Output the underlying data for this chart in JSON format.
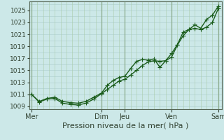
{
  "xlabel": "Pression niveau de la mer( hPa )",
  "bg_color": "#cce8e8",
  "line_color": "#1a5c1a",
  "grid_color_major_v": "#8aaa8a",
  "grid_color_minor": "#aaccaa",
  "grid_color_h": "#aacccc",
  "ylim": [
    1008.5,
    1026.5
  ],
  "yticks": [
    1009,
    1011,
    1013,
    1015,
    1017,
    1019,
    1021,
    1023,
    1025
  ],
  "x_day_labels": [
    "Mer",
    "Dim",
    "Jeu",
    "Ven",
    "Sam"
  ],
  "x_day_positions": [
    0.0,
    3.0,
    4.0,
    6.0,
    8.0
  ],
  "xlim": [
    -0.1,
    8.15
  ],
  "line1_x": [
    0.0,
    0.33,
    0.67,
    1.0,
    1.33,
    1.67,
    2.0,
    2.33,
    2.67,
    3.0,
    3.25,
    3.5,
    3.75,
    4.0,
    4.25,
    4.5,
    4.75,
    5.0,
    5.25,
    5.5,
    5.75,
    6.0,
    6.25,
    6.5,
    6.75,
    7.0,
    7.25,
    7.5,
    7.75,
    8.0
  ],
  "line1_y": [
    1011.0,
    1009.7,
    1010.2,
    1010.3,
    1009.5,
    1009.3,
    1009.2,
    1009.5,
    1010.2,
    1011.1,
    1011.8,
    1012.5,
    1013.2,
    1013.5,
    1014.2,
    1015.0,
    1015.8,
    1016.4,
    1016.6,
    1016.5,
    1016.6,
    1017.2,
    1019.2,
    1020.8,
    1021.8,
    1022.0,
    1021.8,
    1022.2,
    1023.0,
    1025.3
  ],
  "line2_x": [
    0.0,
    0.33,
    0.67,
    1.0,
    1.33,
    1.67,
    2.0,
    2.33,
    2.67,
    3.0,
    3.25,
    3.5,
    3.75,
    4.0,
    4.25,
    4.5,
    4.75,
    5.0,
    5.25,
    5.5,
    5.75,
    6.0,
    6.25,
    6.5,
    6.75,
    7.0,
    7.25,
    7.5,
    7.75,
    8.0
  ],
  "line2_y": [
    1011.0,
    1009.8,
    1010.3,
    1010.5,
    1009.8,
    1009.6,
    1009.5,
    1009.8,
    1010.5,
    1011.2,
    1012.5,
    1013.3,
    1013.8,
    1014.0,
    1015.3,
    1016.5,
    1016.8,
    1016.7,
    1016.9,
    1015.5,
    1016.6,
    1017.8,
    1019.3,
    1021.4,
    1021.8,
    1022.6,
    1022.0,
    1023.5,
    1024.2,
    1025.7
  ],
  "marker_size": 2.5,
  "linewidth": 1.0,
  "xlabel_fontsize": 8,
  "tick_fontsize": 6.5,
  "day_label_fontsize": 7
}
